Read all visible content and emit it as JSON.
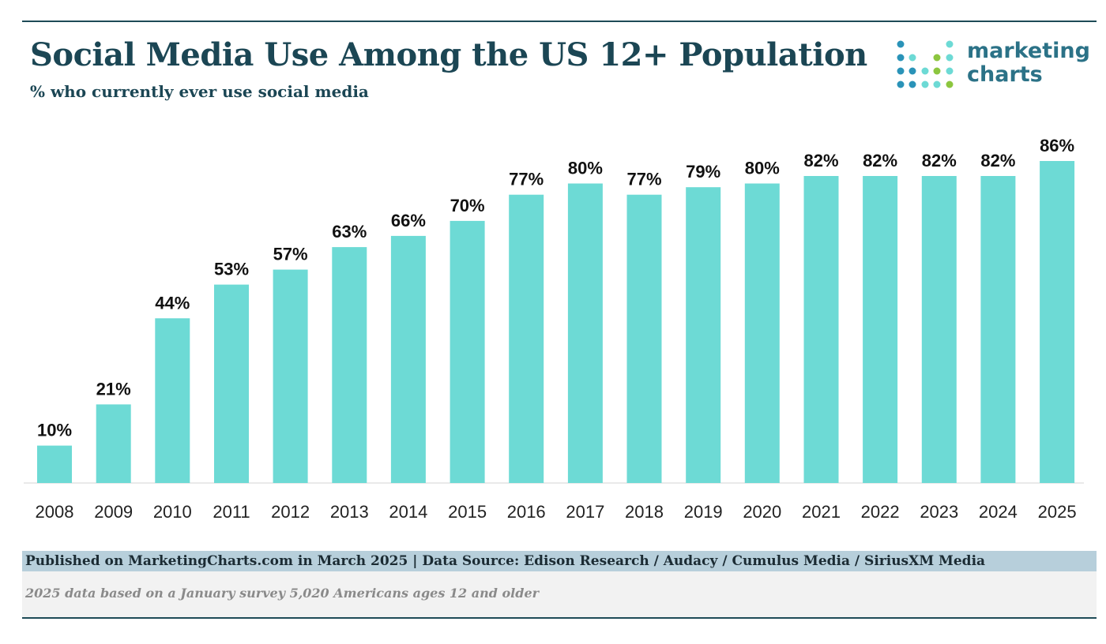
{
  "header": {
    "title": "Social Media Use Among the US 12+ Population",
    "subtitle": "% who currently ever use social media"
  },
  "logo": {
    "line1": "marketing",
    "line2": "charts"
  },
  "colors": {
    "bar": "#6ddad5",
    "title": "#1b4654",
    "accent": "#2b7287"
  },
  "chart_data": {
    "type": "bar",
    "categories": [
      "2008",
      "2009",
      "2010",
      "2011",
      "2012",
      "2013",
      "2014",
      "2015",
      "2016",
      "2017",
      "2018",
      "2019",
      "2020",
      "2021",
      "2022",
      "2023",
      "2024",
      "2025"
    ],
    "values": [
      10,
      21,
      44,
      53,
      57,
      63,
      66,
      70,
      77,
      80,
      77,
      79,
      80,
      82,
      82,
      82,
      82,
      86
    ],
    "data_labels": [
      "10%",
      "21%",
      "44%",
      "53%",
      "57%",
      "63%",
      "66%",
      "70%",
      "77%",
      "80%",
      "77%",
      "79%",
      "80%",
      "82%",
      "82%",
      "82%",
      "82%",
      "86%"
    ],
    "title": "Social Media Use Among the US 12+ Population",
    "subtitle": "% who currently ever use social media",
    "ylim": [
      0,
      86
    ],
    "grid": false,
    "legend": "none"
  },
  "footer": {
    "source": "Published on MarketingCharts.com in March 2025 | Data Source: Edison Research / Audacy / Cumulus Media / SiriusXM Media",
    "note": "2025 data based on a January survey 5,020 Americans ages 12 and older"
  }
}
